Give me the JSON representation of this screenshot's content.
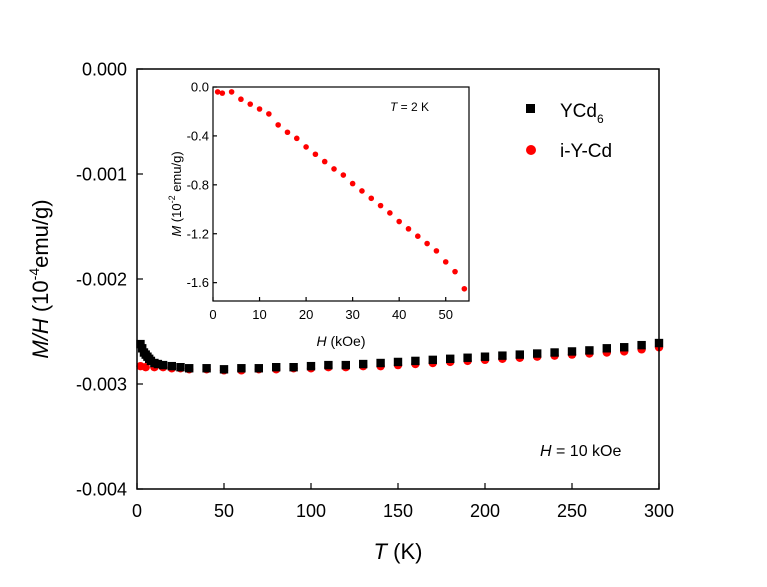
{
  "colors": {
    "ycd6": "#000000",
    "iycd": "#ff0000",
    "axis": "#000000",
    "background": "#ffffff"
  },
  "chart_data": [
    {
      "id": "main",
      "type": "scatter",
      "title": "",
      "xlabel_var": "T",
      "xlabel_unit": " (K)",
      "ylabel_var": "M/H",
      "ylabel_unit_pre": " (10",
      "ylabel_exp": "-4",
      "ylabel_unit_post": "emu/g)",
      "xlim": [
        0,
        300
      ],
      "ylim": [
        -0.004,
        0.0
      ],
      "xticks": [
        0,
        50,
        100,
        150,
        200,
        250,
        300
      ],
      "xtick_labels": [
        "0",
        "50",
        "100",
        "150",
        "200",
        "250",
        "300"
      ],
      "yticks": [
        0.0,
        -0.001,
        -0.002,
        -0.003,
        -0.004
      ],
      "ytick_labels": [
        "0.000",
        "-0.001",
        "-0.002",
        "-0.003",
        "-0.004"
      ],
      "grid": false,
      "legend_position": "top-right",
      "annotation": {
        "var": "H",
        "text": " = 10 kOe"
      },
      "series": [
        {
          "name": "YCd",
          "name_sub": "6",
          "marker": "square",
          "color": "#000000",
          "x": [
            2,
            3,
            4,
            5,
            6,
            7,
            8,
            10,
            12,
            15,
            20,
            25,
            30,
            40,
            50,
            60,
            70,
            80,
            90,
            100,
            110,
            120,
            130,
            140,
            150,
            160,
            170,
            180,
            190,
            200,
            210,
            220,
            230,
            240,
            250,
            260,
            270,
            280,
            290,
            300
          ],
          "y": [
            -0.00262,
            -0.00266,
            -0.0027,
            -0.00272,
            -0.00274,
            -0.00276,
            -0.00278,
            -0.0028,
            -0.00281,
            -0.00282,
            -0.00283,
            -0.00284,
            -0.00285,
            -0.00285,
            -0.00286,
            -0.00285,
            -0.00285,
            -0.00284,
            -0.00284,
            -0.00283,
            -0.00282,
            -0.00282,
            -0.00281,
            -0.0028,
            -0.00279,
            -0.00278,
            -0.00277,
            -0.00276,
            -0.00275,
            -0.00274,
            -0.00273,
            -0.00272,
            -0.00271,
            -0.0027,
            -0.00269,
            -0.00268,
            -0.00266,
            -0.00265,
            -0.00263,
            -0.00261
          ]
        },
        {
          "name": "i-Y-Cd",
          "marker": "circle",
          "color": "#ff0000",
          "x": [
            2,
            5,
            10,
            15,
            20,
            25,
            30,
            40,
            50,
            60,
            70,
            80,
            90,
            100,
            110,
            120,
            130,
            140,
            150,
            160,
            170,
            180,
            190,
            200,
            210,
            220,
            230,
            240,
            250,
            260,
            270,
            280,
            290,
            300
          ],
          "y": [
            -0.00283,
            -0.00284,
            -0.00284,
            -0.00284,
            -0.00285,
            -0.00285,
            -0.00286,
            -0.00286,
            -0.00287,
            -0.00287,
            -0.00286,
            -0.00286,
            -0.00285,
            -0.00285,
            -0.00284,
            -0.00284,
            -0.00283,
            -0.00283,
            -0.00282,
            -0.00281,
            -0.0028,
            -0.00279,
            -0.00278,
            -0.00277,
            -0.00276,
            -0.00275,
            -0.00274,
            -0.00273,
            -0.00272,
            -0.00271,
            -0.0027,
            -0.00269,
            -0.00267,
            -0.00265
          ]
        }
      ]
    },
    {
      "id": "inset",
      "type": "scatter",
      "title": "",
      "xlabel_var": "H",
      "xlabel_unit": " (kOe)",
      "ylabel_var": "M",
      "ylabel_unit_pre": " (10",
      "ylabel_exp": "-2",
      "ylabel_unit_post": " emu/g)",
      "xlim": [
        0,
        55
      ],
      "ylim": [
        -1.75,
        0.0
      ],
      "xticks": [
        0,
        10,
        20,
        30,
        40,
        50
      ],
      "xtick_labels": [
        "0",
        "10",
        "20",
        "30",
        "40",
        "50"
      ],
      "yticks": [
        0.0,
        -0.4,
        -0.8,
        -1.2,
        -1.6
      ],
      "ytick_labels": [
        "0.0",
        "-0.4",
        "-0.8",
        "-1.2",
        "-1.6"
      ],
      "grid": false,
      "annotation": {
        "var": "T",
        "text": " = 2 K"
      },
      "series": [
        {
          "name": "i-Y-Cd (2 K)",
          "marker": "circle",
          "color": "#ff0000",
          "x": [
            1,
            2,
            4,
            6,
            8,
            10,
            12,
            14,
            16,
            18,
            20,
            22,
            24,
            26,
            28,
            30,
            32,
            34,
            36,
            38,
            40,
            42,
            44,
            46,
            48,
            50,
            52,
            54
          ],
          "y": [
            -0.04,
            -0.05,
            -0.04,
            -0.1,
            -0.14,
            -0.18,
            -0.22,
            -0.31,
            -0.37,
            -0.42,
            -0.49,
            -0.55,
            -0.61,
            -0.67,
            -0.72,
            -0.79,
            -0.85,
            -0.91,
            -0.97,
            -1.03,
            -1.1,
            -1.16,
            -1.22,
            -1.28,
            -1.34,
            -1.43,
            -1.51,
            -1.65
          ]
        }
      ]
    }
  ]
}
